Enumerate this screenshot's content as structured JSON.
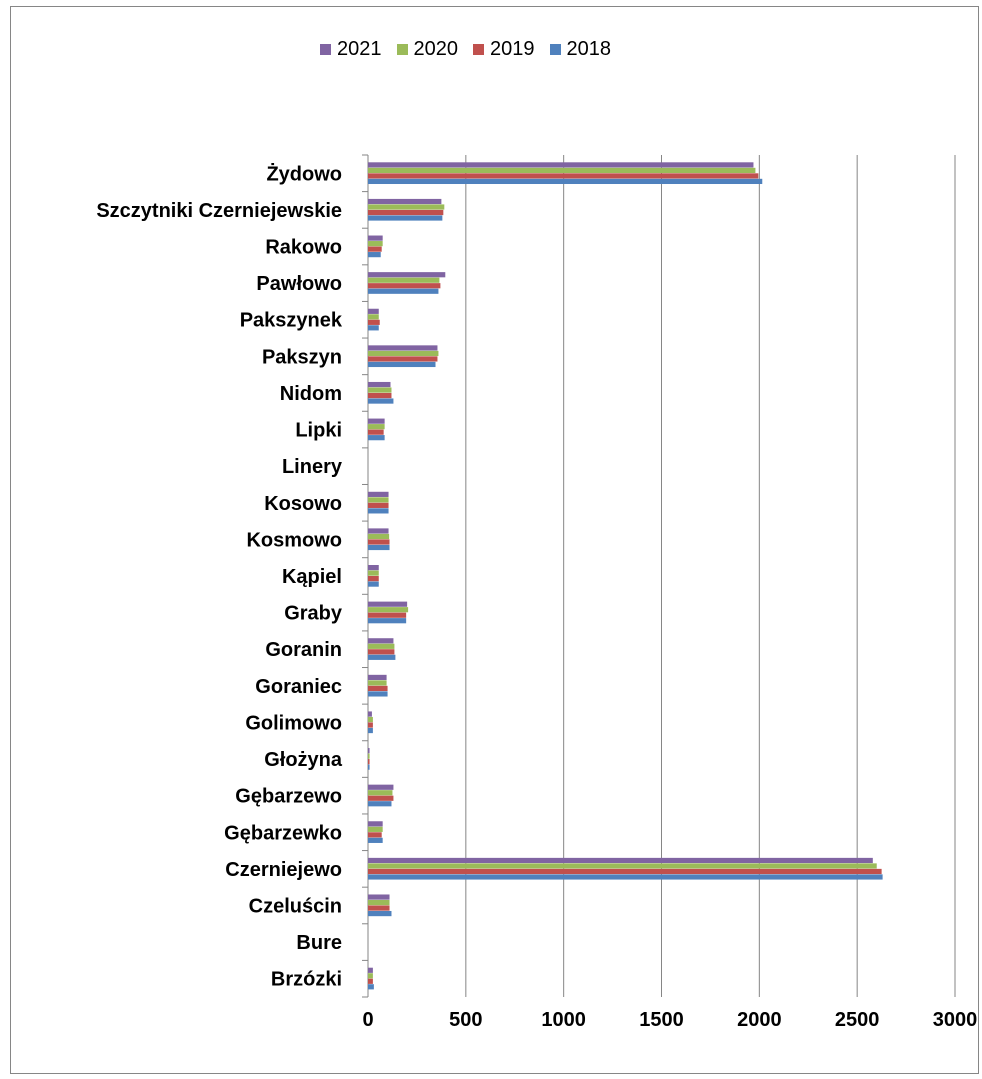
{
  "chart_data": {
    "type": "bar",
    "orientation": "horizontal",
    "title": "",
    "xlabel": "",
    "ylabel": "",
    "xlim": [
      0,
      3000
    ],
    "x_ticks": [
      "0",
      "500",
      "1000",
      "1500",
      "2000",
      "2500",
      "3000"
    ],
    "grid": "vertical major gridlines",
    "legend_position": "top",
    "categories": [
      "Żydowo",
      "Szczytniki Czerniejewskie",
      "Rakowo",
      "Pawłowo",
      "Pakszynek",
      "Pakszyn",
      "Nidom",
      "Lipki",
      "Linery",
      "Kosowo",
      "Kosmowo",
      "Kąpiel",
      "Graby",
      "Goranin",
      "Goraniec",
      "Golimowo",
      "Głożyna",
      "Gębarzewo",
      "Gębarzewko",
      "Czerniejewo",
      "Czeluścin",
      "Bure",
      "Brzózki"
    ],
    "series": [
      {
        "name": "2021",
        "color": "#8064A2",
        "values": [
          1970,
          375,
          75,
          395,
          55,
          355,
          115,
          85,
          0,
          105,
          105,
          55,
          200,
          130,
          95,
          20,
          8,
          130,
          75,
          2580,
          110,
          0,
          25
        ]
      },
      {
        "name": "2020",
        "color": "#9BBB59",
        "values": [
          1980,
          390,
          75,
          365,
          55,
          360,
          120,
          85,
          0,
          105,
          108,
          55,
          205,
          135,
          95,
          25,
          8,
          125,
          75,
          2600,
          110,
          0,
          25
        ]
      },
      {
        "name": "2019",
        "color": "#C0504D",
        "values": [
          1995,
          385,
          70,
          370,
          60,
          355,
          120,
          80,
          0,
          105,
          110,
          55,
          195,
          135,
          100,
          25,
          8,
          130,
          70,
          2625,
          110,
          0,
          25
        ]
      },
      {
        "name": "2018",
        "color": "#4F81BD",
        "values": [
          2015,
          380,
          65,
          360,
          55,
          345,
          130,
          85,
          0,
          105,
          110,
          55,
          195,
          140,
          100,
          25,
          8,
          120,
          75,
          2630,
          120,
          0,
          30
        ]
      }
    ]
  }
}
